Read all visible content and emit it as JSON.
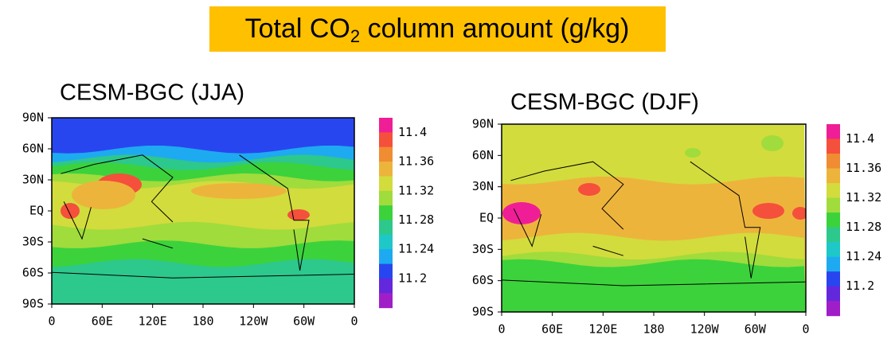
{
  "header": {
    "title": {
      "text": "Total CO",
      "subscript": "2",
      "tail": " column amount (g/kg)"
    }
  },
  "panels": [
    {
      "title": "CESM-BGC (JJA)",
      "lat_labels": [
        "90N",
        "60N",
        "30N",
        "EQ",
        "30S",
        "60S",
        "90S"
      ],
      "lon_labels": [
        "0",
        "60E",
        "120E",
        "180",
        "120W",
        "60W",
        "0"
      ]
    },
    {
      "title": "CESM-BGC (DJF)",
      "lat_labels": [
        "90N",
        "60N",
        "30N",
        "EQ",
        "30S",
        "60S",
        "90S"
      ],
      "lon_labels": [
        "0",
        "60E",
        "120E",
        "180",
        "120W",
        "60W",
        "0"
      ]
    }
  ],
  "colorbar": {
    "labels": [
      "11.4",
      "11.36",
      "11.32",
      "11.28",
      "11.24",
      "11.2"
    ],
    "colors": [
      "#f01e96",
      "#f5503c",
      "#f08c32",
      "#edb43c",
      "#d2dc3c",
      "#a0dc3c",
      "#3cd23c",
      "#2dc88c",
      "#1ec8c8",
      "#1eaaf0",
      "#2846f0",
      "#6428dc",
      "#a01ec8"
    ]
  }
}
